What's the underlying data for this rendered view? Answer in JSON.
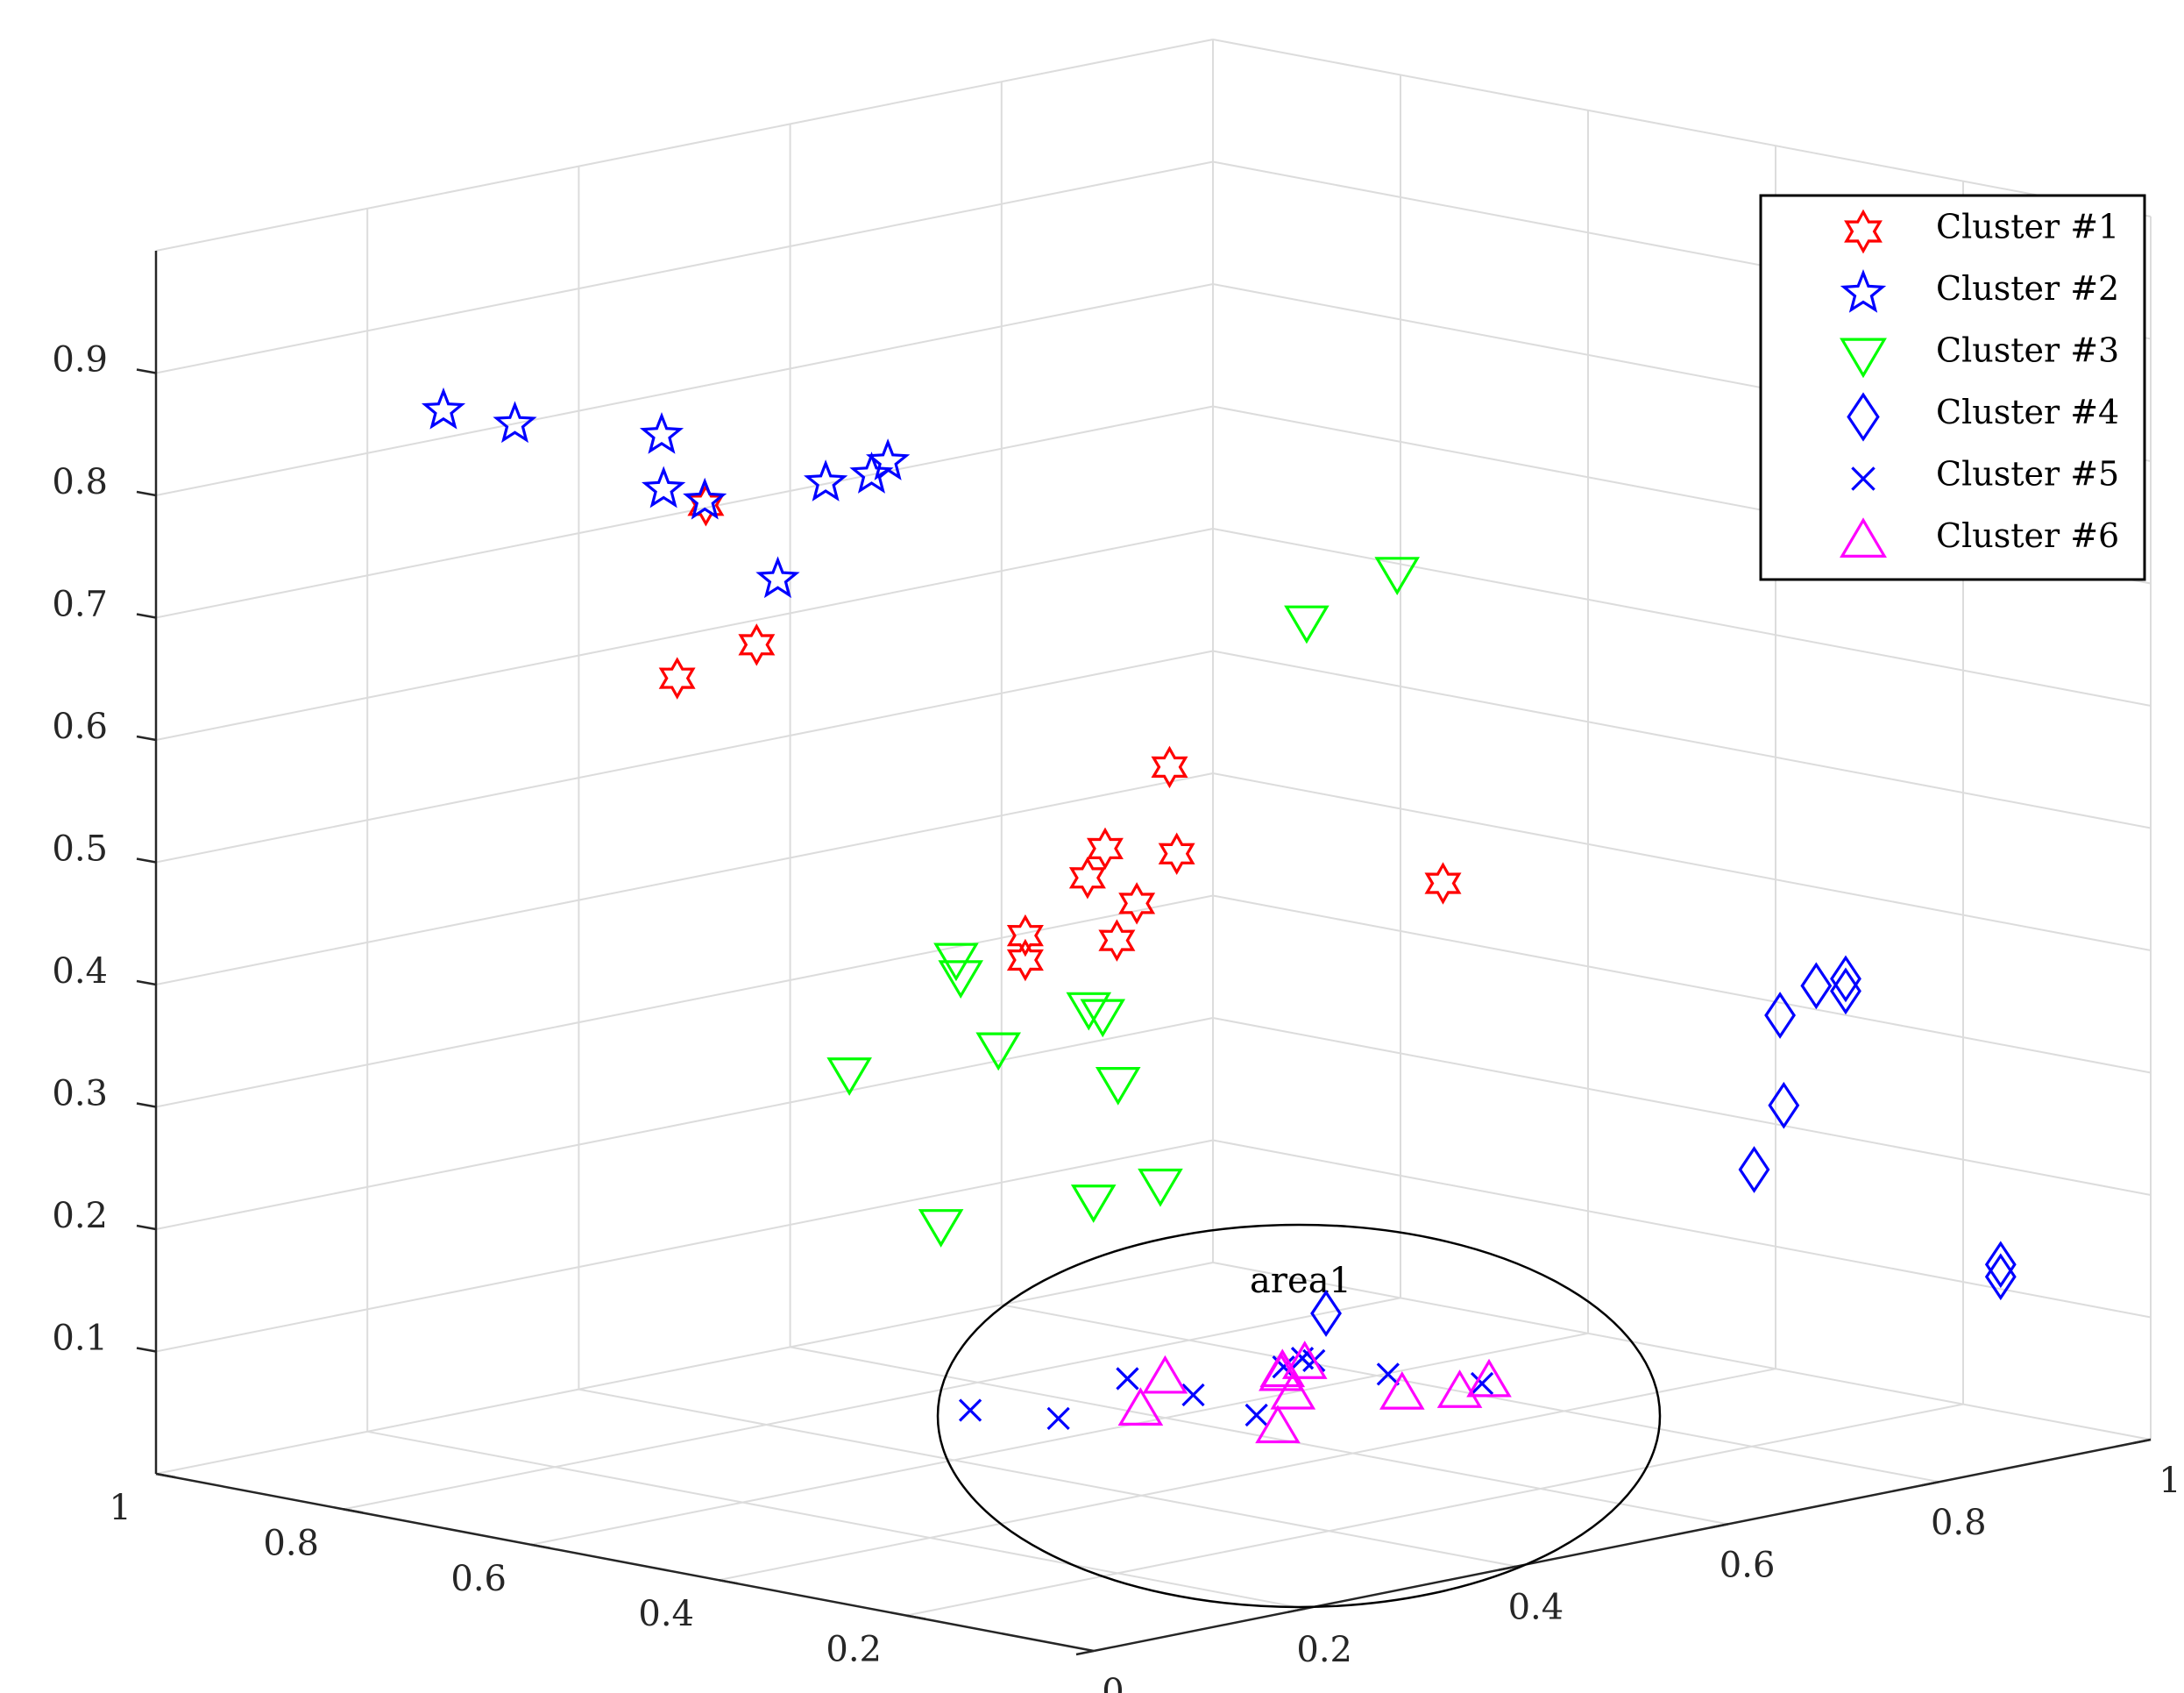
{
  "chart_data": {
    "type": "scatter3d",
    "title": "",
    "xlabel": "",
    "ylabel": "",
    "zlabel": "",
    "grid": true,
    "legend_position": "top-right",
    "axes": {
      "left": {
        "range": [
          0,
          1
        ],
        "ticks": [
          "1",
          "0.8",
          "0.6",
          "0.4",
          "0.2"
        ]
      },
      "right": {
        "range": [
          0,
          1
        ],
        "ticks": [
          "0",
          "0.2",
          "0.4",
          "0.6",
          "0.8",
          "1"
        ]
      },
      "vertical": {
        "range": [
          0,
          1
        ],
        "ticks": [
          "0.1",
          "0.2",
          "0.3",
          "0.4",
          "0.5",
          "0.6",
          "0.7",
          "0.8",
          "0.9"
        ]
      }
    },
    "series": [
      {
        "name": "Cluster #1",
        "marker": "hexagram",
        "color": "#ff0000",
        "points": [
          [
            0.47,
            0.05,
            0.86
          ],
          [
            0.85,
            0.36,
            0.61
          ],
          [
            0.63,
            0.24,
            0.69
          ],
          [
            0.37,
            0.4,
            0.6
          ],
          [
            0.45,
            0.41,
            0.52
          ],
          [
            0.43,
            0.46,
            0.51
          ],
          [
            0.48,
            0.42,
            0.49
          ],
          [
            0.45,
            0.44,
            0.47
          ],
          [
            0.49,
            0.37,
            0.45
          ],
          [
            0.46,
            0.43,
            0.44
          ],
          [
            0.49,
            0.37,
            0.43
          ],
          [
            0.27,
            0.57,
            0.49
          ]
        ]
      },
      {
        "name": "Cluster #2",
        "marker": "pentagram",
        "color": "#0000ff",
        "points": [
          [
            0.47,
            0.01,
            0.88
          ],
          [
            0.73,
            0.1,
            0.88
          ],
          [
            0.84,
            0.13,
            0.87
          ],
          [
            0.72,
            0.23,
            0.85
          ],
          [
            0.55,
            0.12,
            0.84
          ],
          [
            0.49,
            0.24,
            0.86
          ],
          [
            0.5,
            0.19,
            0.85
          ],
          [
            0.53,
            0.26,
            0.84
          ],
          [
            0.63,
            0.26,
            0.74
          ]
        ]
      },
      {
        "name": "Cluster #3",
        "marker": "triangle-down",
        "color": "#00ff00",
        "points": [
          [
            0.19,
            0.37,
            0.75
          ],
          [
            0.24,
            0.5,
            0.76
          ],
          [
            0.53,
            0.34,
            0.43
          ],
          [
            0.48,
            0.3,
            0.43
          ],
          [
            0.43,
            0.39,
            0.39
          ],
          [
            0.49,
            0.43,
            0.38
          ],
          [
            0.53,
            0.38,
            0.35
          ],
          [
            0.47,
            0.44,
            0.32
          ],
          [
            0.61,
            0.31,
            0.33
          ],
          [
            0.53,
            0.47,
            0.21
          ],
          [
            0.47,
            0.48,
            0.23
          ],
          [
            0.58,
            0.37,
            0.2
          ]
        ]
      },
      {
        "name": "Cluster #4",
        "marker": "diamond",
        "color": "#0000ff",
        "points": [
          [
            0.12,
            0.79,
            0.39
          ],
          [
            0.19,
            0.88,
            0.37
          ],
          [
            0.19,
            0.88,
            0.36
          ],
          [
            0.26,
            0.88,
            0.33
          ],
          [
            0.22,
            0.82,
            0.22
          ],
          [
            0.38,
            0.99,
            0.22
          ],
          [
            0.16,
            1.0,
            0.12
          ],
          [
            0.16,
            1.0,
            0.11
          ],
          [
            0.53,
            0.69,
            0.08
          ]
        ]
      },
      {
        "name": "Cluster #5",
        "marker": "x",
        "color": "#0000ff",
        "points": [
          [
            0.56,
            0.38,
            0.05
          ],
          [
            0.46,
            0.44,
            0.08
          ],
          [
            0.34,
            0.51,
            0.1
          ],
          [
            0.48,
            0.52,
            0.05
          ],
          [
            0.39,
            0.5,
            0.05
          ],
          [
            0.44,
            0.57,
            0.07
          ],
          [
            0.42,
            0.57,
            0.08
          ],
          [
            0.59,
            0.49,
            0.02
          ],
          [
            0.43,
            0.66,
            0.05
          ],
          [
            0.42,
            0.74,
            0.03
          ]
        ]
      },
      {
        "name": "Cluster #6",
        "marker": "triangle-up",
        "color": "#ff00ff",
        "points": [
          [
            0.51,
            0.52,
            0.06
          ],
          [
            0.43,
            0.56,
            0.07
          ],
          [
            0.42,
            0.55,
            0.07
          ],
          [
            0.44,
            0.59,
            0.07
          ],
          [
            0.43,
            0.57,
            0.05
          ],
          [
            0.48,
            0.6,
            0.01
          ],
          [
            0.37,
            0.62,
            0.05
          ],
          [
            0.57,
            0.55,
            0.02
          ],
          [
            0.39,
            0.72,
            0.04
          ],
          [
            0.41,
            0.71,
            0.03
          ]
        ]
      }
    ],
    "annotations": [
      {
        "text": "area1",
        "shape": "ellipse"
      }
    ]
  }
}
